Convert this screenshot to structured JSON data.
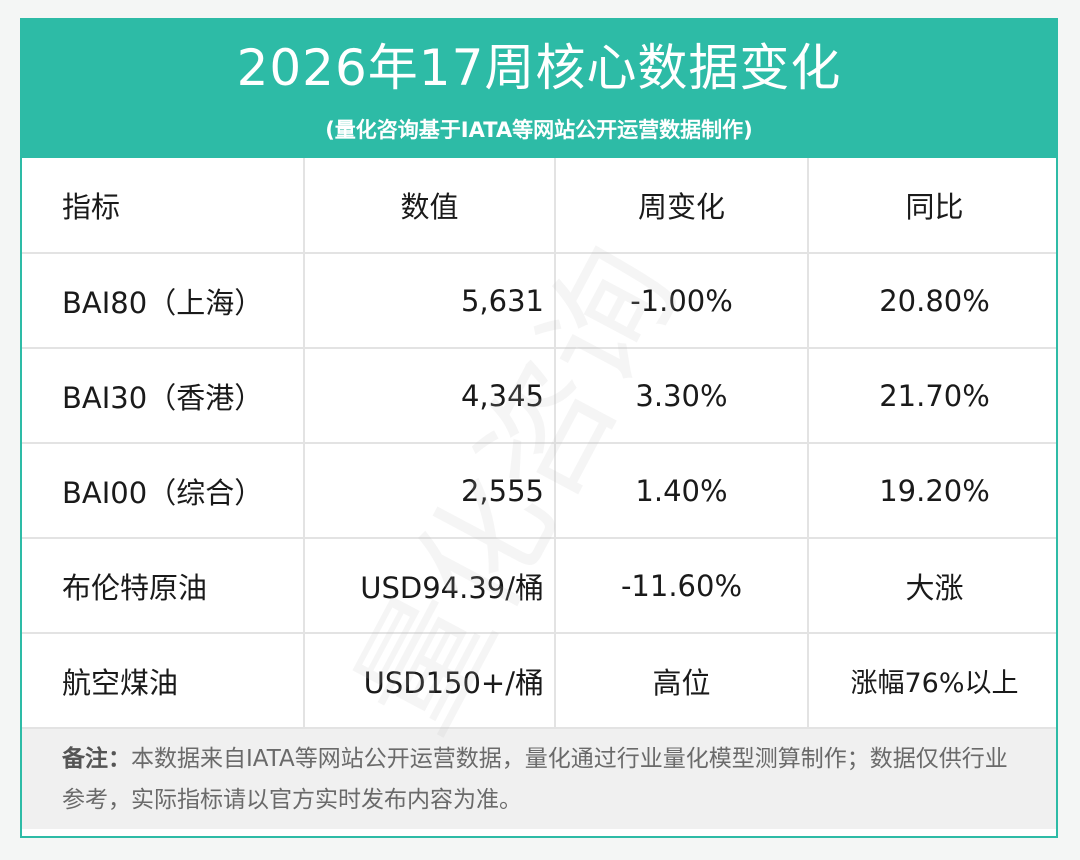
{
  "header": {
    "title": "2026年17周核心数据变化",
    "subtitle": "(量化咨询基于IATA等网站公开运营数据制作)"
  },
  "table": {
    "columns": [
      "指标",
      "数值",
      "周变化",
      "同比"
    ],
    "rows": [
      [
        "BAI80（上海）",
        "5,631",
        "-1.00%",
        "20.80%"
      ],
      [
        "BAI30（香港）",
        "4,345",
        "3.30%",
        "21.70%"
      ],
      [
        "BAI00（综合）",
        "2,555",
        "1.40%",
        "19.20%"
      ],
      [
        "布伦特原油",
        "USD94.39/桶",
        "-11.60%",
        "大涨"
      ],
      [
        "航空煤油",
        "USD150+/桶",
        "高位",
        "涨幅76%以上"
      ]
    ]
  },
  "note": {
    "label": "备注：",
    "text": "本数据来自IATA等网站公开运营数据，量化通过行业量化模型测算制作；数据仅供行业参考，实际指标请以官方实时发布内容为准。"
  },
  "watermark": "量化咨询",
  "colors": {
    "accent": "#2dbba6",
    "note_bg": "#f0f0f0",
    "grid": "#e3e3e3"
  }
}
